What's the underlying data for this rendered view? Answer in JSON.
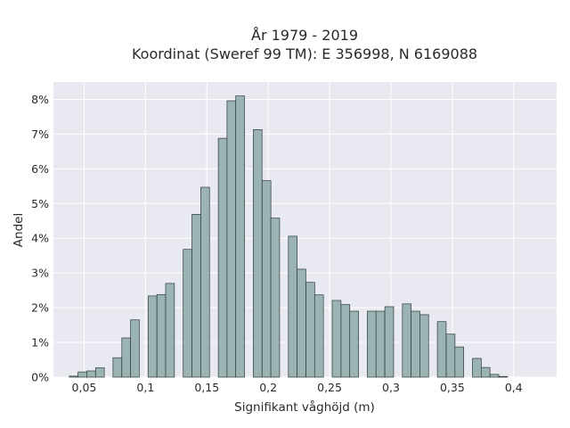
{
  "chart_data": {
    "type": "bar",
    "title_line1": "År 1979 - 2019",
    "title_line2": "Koordinat (Sweref 99 TM): E 356998, N 6169088",
    "xlabel": "Signifikant våghöjd (m)",
    "ylabel": "Andel",
    "xlim": [
      0.025,
      0.435
    ],
    "ylim": [
      0,
      8.5
    ],
    "bin_width": 0.00714,
    "grid": true,
    "x_ticks": [
      0.05,
      0.1,
      0.15,
      0.2,
      0.25,
      0.3,
      0.35,
      0.4
    ],
    "x_tick_labels": [
      "0,05",
      "0,1",
      "0,15",
      "0,2",
      "0,25",
      "0,3",
      "0,35",
      "0,4"
    ],
    "y_ticks": [
      0,
      1,
      2,
      3,
      4,
      5,
      6,
      7,
      8
    ],
    "y_tick_labels": [
      "0%",
      "1%",
      "2%",
      "3%",
      "4%",
      "5%",
      "6%",
      "7%",
      "8%"
    ],
    "x": [
      0.0414,
      0.0486,
      0.0557,
      0.0629,
      0.07,
      0.0771,
      0.0843,
      0.0914,
      0.0986,
      0.1057,
      0.1129,
      0.12,
      0.1271,
      0.1343,
      0.1414,
      0.1486,
      0.1557,
      0.1629,
      0.17,
      0.1771,
      0.1843,
      0.1914,
      0.1986,
      0.2057,
      0.2129,
      0.22,
      0.2271,
      0.2343,
      0.2414,
      0.2486,
      0.2557,
      0.2629,
      0.27,
      0.2771,
      0.2843,
      0.2914,
      0.2986,
      0.3057,
      0.3129,
      0.32,
      0.3271,
      0.3343,
      0.3414,
      0.3486,
      0.3557,
      0.3629,
      0.37,
      0.3771,
      0.3843,
      0.3914,
      0.3986,
      0.4057,
      0.4129
    ],
    "values": [
      0.03,
      0.15,
      0.18,
      0.27,
      0,
      0.56,
      1.13,
      1.65,
      0,
      2.34,
      2.38,
      2.7,
      0,
      3.68,
      4.69,
      5.47,
      0,
      6.88,
      7.96,
      8.1,
      0,
      7.13,
      5.66,
      4.58,
      0,
      4.06,
      3.11,
      2.73,
      2.37,
      0,
      2.21,
      2.09,
      1.9,
      0,
      1.9,
      1.9,
      2.03,
      0,
      2.11,
      1.9,
      1.8,
      0,
      1.6,
      1.24,
      0.87,
      0,
      0.54,
      0.28,
      0.08,
      0.02,
      0,
      0,
      0
    ]
  }
}
